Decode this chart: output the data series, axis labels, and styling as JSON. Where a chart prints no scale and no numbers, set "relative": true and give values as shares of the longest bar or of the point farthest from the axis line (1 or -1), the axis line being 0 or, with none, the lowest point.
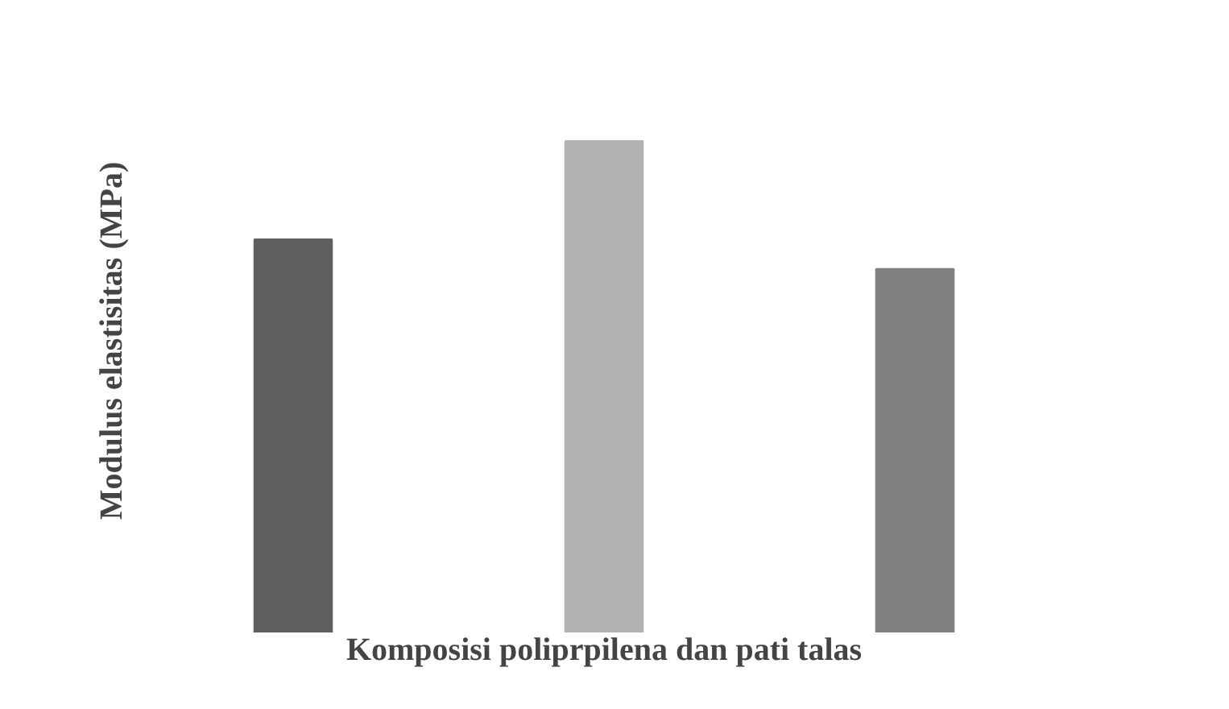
{
  "chart_data": {
    "type": "bar",
    "relative": true,
    "xlabel": "Komposisi poliprpilena dan pati talas",
    "ylabel": "Modulus elastisitas (MPa)",
    "categories": [
      null,
      null,
      null
    ],
    "values": [
      0.8,
      1,
      0.74
    ],
    "colors": [
      "#5f5f5f",
      "#b2b2b2",
      "#808080"
    ]
  }
}
